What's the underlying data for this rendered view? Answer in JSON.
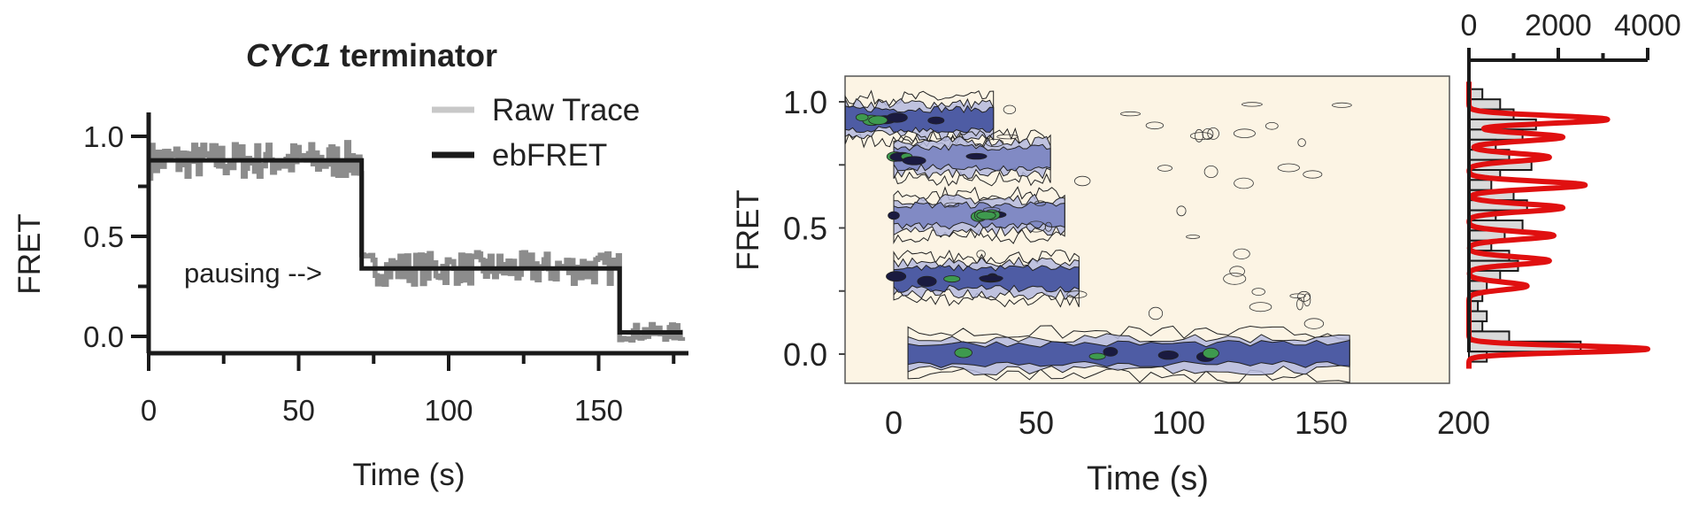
{
  "chart_data": [
    {
      "type": "line",
      "title_italic": "CYC1",
      "title_rest": " terminator",
      "xlabel": "Time (s)",
      "ylabel": "FRET",
      "xlim": [
        0,
        180
      ],
      "ylim": [
        -0.1,
        1.1
      ],
      "xticks": [
        0,
        50,
        100,
        150
      ],
      "yticks": [
        0.0,
        0.5,
        1.0
      ],
      "ytick_labels": [
        "0.0",
        "0.5",
        "1.0"
      ],
      "legend": [
        "Raw Trace",
        "ebFRET"
      ],
      "legend_position": "top-right",
      "annotation": "pausing -->",
      "series": [
        {
          "name": "ebFRET",
          "color": "#1a1a1a",
          "x": [
            0,
            71,
            71,
            157,
            157,
            178
          ],
          "y": [
            0.88,
            0.88,
            0.34,
            0.34,
            0.02,
            0.02
          ]
        },
        {
          "name": "Raw Trace",
          "color": "#8c8c8c",
          "segments": [
            {
              "x_start": 0,
              "x_end": 71,
              "mean": 0.88,
              "spread": 0.09
            },
            {
              "x_start": 71,
              "x_end": 157,
              "mean": 0.34,
              "spread": 0.08
            },
            {
              "x_start": 157,
              "x_end": 178,
              "mean": 0.02,
              "spread": 0.04
            }
          ]
        }
      ]
    },
    {
      "type": "heatmap",
      "subtype": "contour",
      "xlabel": "Time (s)",
      "ylabel": "FRET",
      "xlim": [
        -17,
        200
      ],
      "ylim": [
        -0.1,
        1.1
      ],
      "xticks": [
        0,
        50,
        100,
        150,
        200
      ],
      "yticks": [
        0.0,
        0.5,
        1.0
      ],
      "ytick_labels": [
        "0.0",
        "0.5",
        "1.0"
      ],
      "background": "#fcf4e4",
      "bands": [
        {
          "fret": 0.93,
          "t_start": -17,
          "t_end": 35,
          "intensity": "high"
        },
        {
          "fret": 0.78,
          "t_start": 0,
          "t_end": 55,
          "intensity": "medium"
        },
        {
          "fret": 0.55,
          "t_start": 0,
          "t_end": 60,
          "intensity": "medium"
        },
        {
          "fret": 0.3,
          "t_start": 0,
          "t_end": 65,
          "intensity": "high"
        },
        {
          "fret": 0.0,
          "t_start": 5,
          "t_end": 160,
          "intensity": "high"
        }
      ]
    },
    {
      "type": "bar",
      "orientation": "horizontal",
      "xlim": [
        0,
        4000
      ],
      "xticks": [
        0,
        2000,
        4000
      ],
      "bins_fret": [
        1.03,
        0.99,
        0.95,
        0.91,
        0.87,
        0.83,
        0.79,
        0.75,
        0.71,
        0.67,
        0.63,
        0.59,
        0.55,
        0.51,
        0.47,
        0.43,
        0.39,
        0.35,
        0.31,
        0.27,
        0.23,
        0.19,
        0.15,
        0.11,
        0.07,
        0.03,
        -0.01
      ],
      "counts": [
        300,
        700,
        1000,
        1500,
        1200,
        600,
        900,
        1400,
        700,
        500,
        1000,
        1300,
        600,
        1200,
        800,
        500,
        900,
        1100,
        700,
        400,
        300,
        200,
        400,
        300,
        900,
        2500,
        400
      ],
      "fit": {
        "name": "Gaussian fit",
        "color": "#e01010",
        "peaks": [
          {
            "center": 0.93,
            "height": 3100,
            "width": 0.015
          },
          {
            "center": 0.86,
            "height": 2100,
            "width": 0.015
          },
          {
            "center": 0.78,
            "height": 1800,
            "width": 0.015
          },
          {
            "center": 0.67,
            "height": 2600,
            "width": 0.015
          },
          {
            "center": 0.58,
            "height": 2100,
            "width": 0.015
          },
          {
            "center": 0.47,
            "height": 1900,
            "width": 0.015
          },
          {
            "center": 0.37,
            "height": 1800,
            "width": 0.015
          },
          {
            "center": 0.27,
            "height": 1300,
            "width": 0.015
          },
          {
            "center": 0.02,
            "height": 4000,
            "width": 0.013
          }
        ]
      }
    }
  ]
}
